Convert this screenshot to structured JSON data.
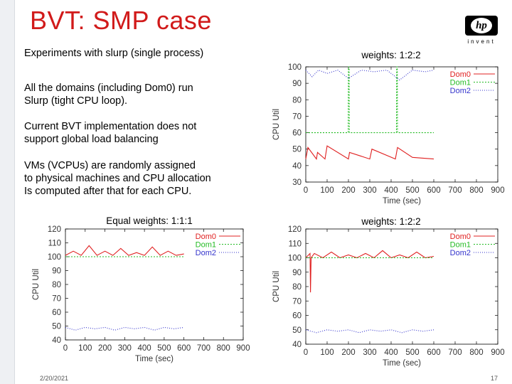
{
  "slide": {
    "title": "BVT: SMP case",
    "logo_text": "hp",
    "logo_tagline": "invent",
    "date": "2/20/2021",
    "page_number": "17",
    "paragraphs": [
      [
        "Experiments with slurp (single process)"
      ],
      [
        "All the domains (including Dom0) run",
        "Slurp (tight CPU loop)."
      ],
      [
        "Current BVT implementation does not",
        "support global load balancing"
      ],
      [
        "VMs (VCPUs)   are randomly assigned",
        "to physical machines and CPU allocation",
        "Is computed after that for each CPU."
      ]
    ]
  },
  "colors": {
    "title": "#d11a1a",
    "dom0": "#e02020",
    "dom1": "#22bb22",
    "dom2": "#3333cc"
  },
  "chart_data": [
    {
      "type": "line",
      "title": "weights: 1:2:2",
      "xlabel": "Time (sec)",
      "ylabel": "CPU Util",
      "xlim": [
        0,
        900
      ],
      "ylim": [
        30,
        100
      ],
      "xticks": [
        0,
        100,
        200,
        300,
        400,
        500,
        600,
        700,
        800,
        900
      ],
      "yticks": [
        30,
        40,
        50,
        60,
        70,
        80,
        90,
        100
      ],
      "legend": "top-right",
      "series": [
        {
          "name": "Dom0",
          "x": [
            0,
            10,
            50,
            55,
            90,
            100,
            200,
            205,
            300,
            310,
            420,
            430,
            500,
            600
          ],
          "y": [
            44,
            51,
            44,
            48,
            44,
            52,
            44,
            48,
            44,
            50,
            44,
            51,
            45,
            44
          ]
        },
        {
          "name": "Dom1",
          "x": [
            0,
            199,
            200,
            203,
            204,
            425,
            426,
            429,
            430,
            600
          ],
          "y": [
            60,
            60,
            100,
            100,
            60,
            60,
            100,
            100,
            60,
            60
          ]
        },
        {
          "name": "Dom2",
          "x": [
            0,
            30,
            60,
            100,
            150,
            200,
            260,
            320,
            380,
            440,
            500,
            560,
            600
          ],
          "y": [
            98,
            94,
            98,
            96,
            98,
            93,
            98,
            97,
            98,
            92,
            98,
            97,
            98
          ]
        }
      ]
    },
    {
      "type": "line",
      "title": "Equal weights: 1:1:1",
      "xlabel": "Time (sec)",
      "ylabel": "CPU Util",
      "xlim": [
        0,
        900
      ],
      "ylim": [
        40,
        120
      ],
      "xticks": [
        0,
        100,
        200,
        300,
        400,
        500,
        600,
        700,
        800,
        900
      ],
      "yticks": [
        40,
        50,
        60,
        70,
        80,
        90,
        100,
        110,
        120
      ],
      "legend": "top-right",
      "series": [
        {
          "name": "Dom0",
          "x": [
            0,
            40,
            80,
            120,
            160,
            200,
            240,
            280,
            320,
            360,
            400,
            440,
            480,
            520,
            560,
            600
          ],
          "y": [
            101,
            104,
            101,
            108,
            101,
            104,
            101,
            106,
            101,
            103,
            101,
            107,
            101,
            104,
            101,
            102
          ]
        },
        {
          "name": "Dom1",
          "x": [
            0,
            600
          ],
          "y": [
            100,
            100
          ]
        },
        {
          "name": "Dom2",
          "x": [
            0,
            50,
            100,
            150,
            200,
            250,
            300,
            350,
            400,
            450,
            500,
            550,
            600
          ],
          "y": [
            49,
            47,
            49,
            48,
            49,
            47,
            49,
            48,
            49,
            47,
            49,
            48,
            49
          ]
        }
      ]
    },
    {
      "type": "line",
      "title": "weights: 1:2:2",
      "xlabel": "Time (sec)",
      "ylabel": "CPU Util",
      "xlim": [
        0,
        900
      ],
      "ylim": [
        40,
        120
      ],
      "xticks": [
        0,
        100,
        200,
        300,
        400,
        500,
        600,
        700,
        800,
        900
      ],
      "yticks": [
        40,
        50,
        60,
        70,
        80,
        90,
        100,
        110,
        120
      ],
      "legend": "top-right",
      "series": [
        {
          "name": "Dom0",
          "x": [
            0,
            20,
            22,
            25,
            40,
            80,
            120,
            160,
            200,
            240,
            280,
            320,
            360,
            400,
            440,
            480,
            520,
            560,
            600
          ],
          "y": [
            100,
            103,
            76,
            100,
            103,
            100,
            104,
            100,
            102,
            100,
            103,
            100,
            105,
            100,
            102,
            100,
            104,
            100,
            101
          ]
        },
        {
          "name": "Dom1",
          "x": [
            0,
            600
          ],
          "y": [
            100,
            100
          ]
        },
        {
          "name": "Dom2",
          "x": [
            0,
            50,
            100,
            150,
            200,
            250,
            300,
            350,
            400,
            450,
            500,
            550,
            600
          ],
          "y": [
            50,
            48,
            50,
            49,
            50,
            48,
            50,
            49,
            50,
            48,
            50,
            49,
            50
          ]
        }
      ]
    }
  ]
}
